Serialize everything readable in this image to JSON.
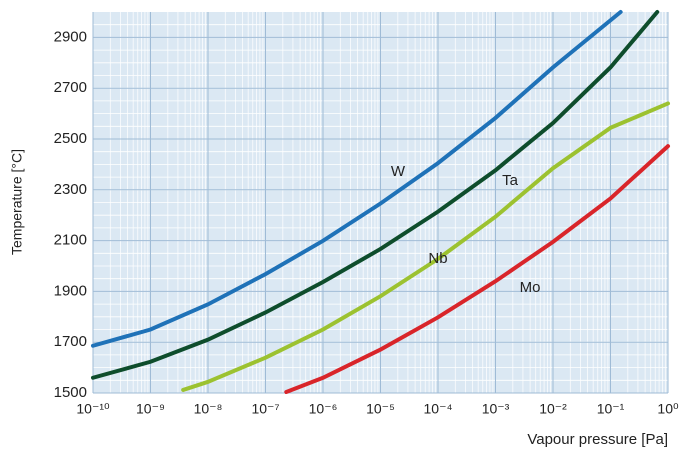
{
  "chart_data": {
    "type": "line",
    "x_label": "Vapour pressure [Pa]",
    "y_label": "Temperature [°C]",
    "x_scale": "log",
    "grid": true,
    "xlim": [
      1e-10,
      1
    ],
    "ylim": [
      1500,
      3000
    ],
    "xticks": [
      {
        "value": 1e-10,
        "label": "10⁻¹⁰"
      },
      {
        "value": 1e-09,
        "label": "10⁻⁹"
      },
      {
        "value": 1e-08,
        "label": "10⁻⁸"
      },
      {
        "value": 1e-07,
        "label": "10⁻⁷"
      },
      {
        "value": 1e-06,
        "label": "10⁻⁶"
      },
      {
        "value": 1e-05,
        "label": "10⁻⁵"
      },
      {
        "value": 0.0001,
        "label": "10⁻⁴"
      },
      {
        "value": 0.001,
        "label": "10⁻³"
      },
      {
        "value": 0.01,
        "label": "10⁻²"
      },
      {
        "value": 0.1,
        "label": "10⁻¹"
      },
      {
        "value": 1,
        "label": "10⁰"
      }
    ],
    "yticks": [
      1500,
      1700,
      1900,
      2100,
      2300,
      2500,
      2700,
      2900
    ],
    "series": [
      {
        "name": "W",
        "color": "#1f72b8",
        "x": [
          1e-10,
          1e-09,
          1e-08,
          1e-07,
          1e-06,
          1e-05,
          0.0001,
          0.001,
          0.01,
          0.15
        ],
        "values": [
          1686,
          1750,
          1849,
          1968,
          2099,
          2246,
          2405,
          2583,
          2782,
          3000
        ]
      },
      {
        "name": "Ta",
        "color": "#0e4d2c",
        "x": [
          1e-10,
          1e-09,
          1e-08,
          1e-07,
          1e-06,
          1e-05,
          0.0001,
          0.001,
          0.01,
          0.1,
          0.65
        ],
        "values": [
          1560,
          1623,
          1710,
          1817,
          1937,
          2067,
          2214,
          2377,
          2563,
          2782,
          3000
        ]
      },
      {
        "name": "Nb",
        "color": "#9cc230",
        "x": [
          3.7e-09,
          1e-08,
          1e-07,
          1e-06,
          1e-05,
          0.0001,
          0.001,
          0.01,
          0.1,
          1
        ],
        "values": [
          1512,
          1544,
          1639,
          1750,
          1881,
          2028,
          2194,
          2385,
          2544,
          2640
        ]
      },
      {
        "name": "Mo",
        "color": "#d9252a",
        "x": [
          2.3e-07,
          1e-06,
          1e-05,
          0.0001,
          0.001,
          0.01,
          0.1,
          1
        ],
        "values": [
          1504,
          1560,
          1671,
          1798,
          1940,
          2095,
          2266,
          2472
        ]
      }
    ]
  }
}
